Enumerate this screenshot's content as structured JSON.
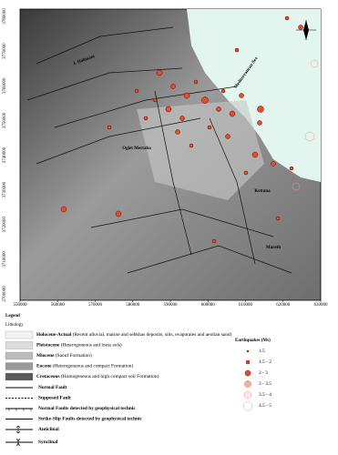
{
  "map": {
    "x_labels": [
      "550000",
      "560000",
      "570000",
      "580000",
      "590000",
      "600000",
      "610000",
      "620000",
      "630000"
    ],
    "y_labels": [
      "3780000",
      "3770000",
      "3760000",
      "3750000",
      "3740000",
      "3730000",
      "3720000",
      "3710000",
      "3700000"
    ],
    "places": [
      "Mediterranean Sea",
      "J. Halouani",
      "Oglet Mertaba",
      "Kettana",
      "Mareth"
    ]
  },
  "legend": {
    "title": "Legend",
    "lithology_title": "Lithology",
    "lithology": [
      {
        "name": "Holocene-Actual",
        "description": "(Recent alluvial, marine and sebkhas deposits, silts, evaporates and aeolian sand)"
      },
      {
        "name": "Pleistocene",
        "description": "(Heterogeneous and loess sols)"
      },
      {
        "name": "Miocene",
        "description": "(Saouf Formation)"
      },
      {
        "name": "Eocene",
        "description": "(Heterogeneous and compact Formation)"
      },
      {
        "name": "Cretaceous",
        "description": "(Homogeneous and high compact soil Formation)"
      }
    ],
    "structures": [
      "Normal Fault",
      "Supposed Fault",
      "Normal Faults detected by geophysical technic",
      "Strike-Slip Faults detected by geophysical technic",
      "Anticlinal",
      "Synclinal"
    ],
    "earthquakes_title": "Earthquakes (Ms)",
    "earthquakes": [
      "1.5",
      "1.5 - 2",
      "2 - 3",
      "3 - 3.5",
      "3.5 - 4",
      "4.5 - 5"
    ]
  }
}
